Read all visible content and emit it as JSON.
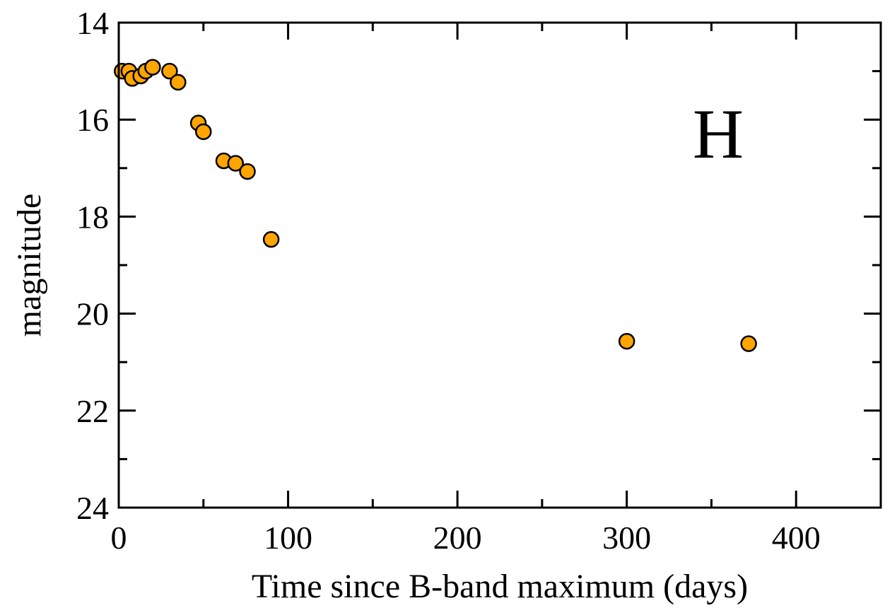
{
  "chart_data": {
    "type": "scatter",
    "xlabel": "Time since B-band maximum (days)",
    "ylabel": "magnitude",
    "annotation": "H",
    "xlim": [
      0,
      450
    ],
    "ylim": [
      24,
      14
    ],
    "y_inverted": true,
    "x_ticks": [
      0,
      100,
      200,
      300,
      400
    ],
    "x_minor_ticks": [
      50,
      150,
      250,
      350
    ],
    "y_ticks": [
      14,
      16,
      18,
      20,
      22,
      24
    ],
    "y_minor_ticks": [
      15,
      17,
      19,
      21,
      23
    ],
    "x_tick_labels": [
      "0",
      "100",
      "200",
      "300",
      "400"
    ],
    "y_tick_labels": [
      "14",
      "16",
      "18",
      "20",
      "22",
      "24"
    ],
    "grid": false,
    "marker_color": "#ffa500",
    "series": [
      {
        "x": [
          2,
          6,
          8,
          13,
          16,
          20,
          30,
          35,
          47,
          50,
          62,
          69,
          76,
          90,
          300,
          372
        ],
        "y": [
          15.0,
          15.0,
          15.15,
          15.1,
          15.0,
          14.92,
          15.0,
          15.23,
          16.07,
          16.25,
          16.85,
          16.9,
          17.07,
          18.47,
          20.57,
          20.62
        ]
      }
    ]
  }
}
